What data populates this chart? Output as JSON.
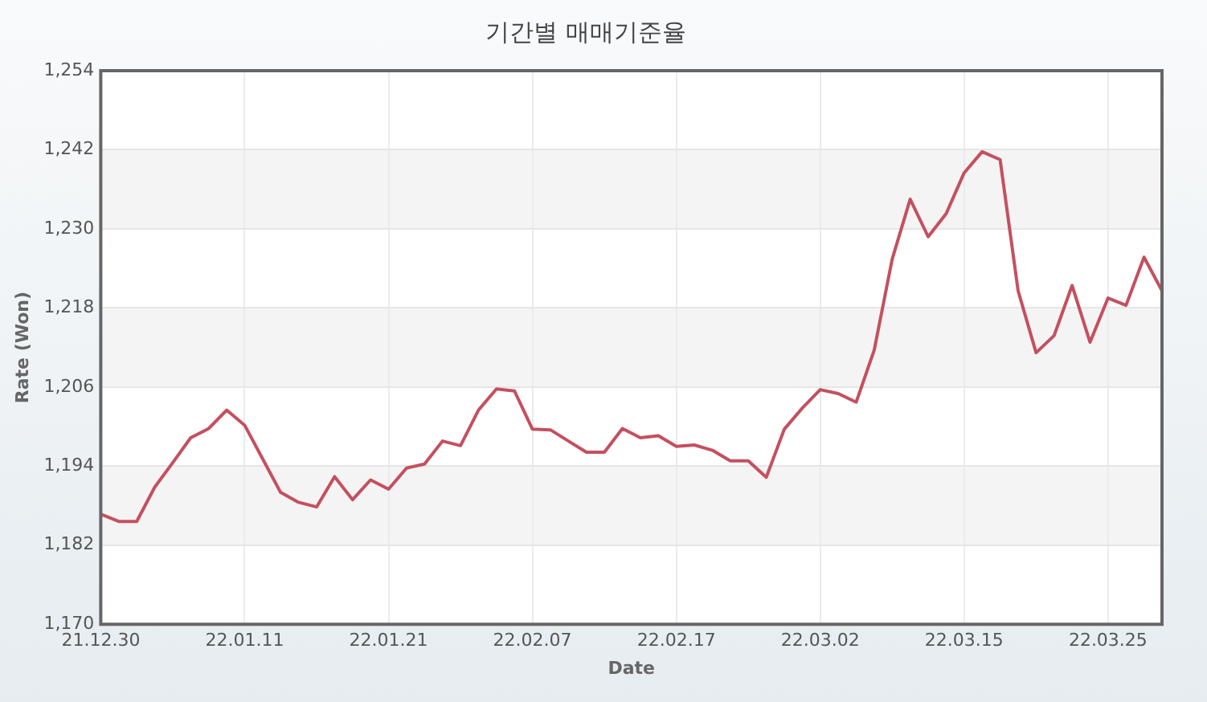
{
  "chart_data": {
    "type": "line",
    "title": "기간별 매매기준율",
    "xlabel": "Date",
    "ylabel": "Rate (Won)",
    "categories": [
      "21.12.30",
      null,
      null,
      null,
      null,
      null,
      null,
      null,
      "22.01.11",
      null,
      null,
      null,
      null,
      null,
      null,
      null,
      "22.01.21",
      null,
      null,
      null,
      null,
      null,
      null,
      null,
      "22.02.07",
      null,
      null,
      null,
      null,
      null,
      null,
      null,
      "22.02.17",
      null,
      null,
      null,
      null,
      null,
      null,
      null,
      "22.03.02",
      null,
      null,
      null,
      null,
      null,
      null,
      null,
      "22.03.15",
      null,
      null,
      null,
      null,
      null,
      null,
      null,
      "22.03.25",
      null,
      null,
      null
    ],
    "series": [
      {
        "color": "#c4505f",
        "values": [
          1186.7,
          1185.6,
          1185.6,
          1190.8,
          1194.5,
          1198.3,
          1199.7,
          1202.5,
          1200.2,
          1195.1,
          1190.0,
          1188.5,
          1187.8,
          1192.4,
          1188.9,
          1191.9,
          1190.5,
          1193.7,
          1194.3,
          1197.8,
          1197.1,
          1202.5,
          1205.7,
          1205.4,
          1199.6,
          1199.5,
          1197.8,
          1196.1,
          1196.1,
          1199.7,
          1198.3,
          1198.6,
          1197.0,
          1197.2,
          1196.4,
          1194.8,
          1194.8,
          1192.3,
          1199.6,
          1202.8,
          1205.6,
          1205.0,
          1203.7,
          1211.6,
          1225.4,
          1234.5,
          1228.8,
          1232.3,
          1238.5,
          1241.7,
          1240.5,
          1220.6,
          1211.2,
          1213.8,
          1221.4,
          1212.8,
          1219.5,
          1218.4,
          1225.7,
          1220.6
        ]
      }
    ],
    "ylim": [
      1170,
      1254
    ],
    "yticks": [
      {
        "value": 1170,
        "label": "1,170"
      },
      {
        "value": 1182,
        "label": "1,182"
      },
      {
        "value": 1194,
        "label": "1,194"
      },
      {
        "value": 1206,
        "label": "1,206"
      },
      {
        "value": 1218,
        "label": "1,218"
      },
      {
        "value": 1230,
        "label": "1,230"
      },
      {
        "value": 1242,
        "label": "1,242"
      },
      {
        "value": 1254,
        "label": "1,254"
      }
    ],
    "grid": true,
    "legend": false,
    "marker": "none",
    "line_style": "solid"
  }
}
